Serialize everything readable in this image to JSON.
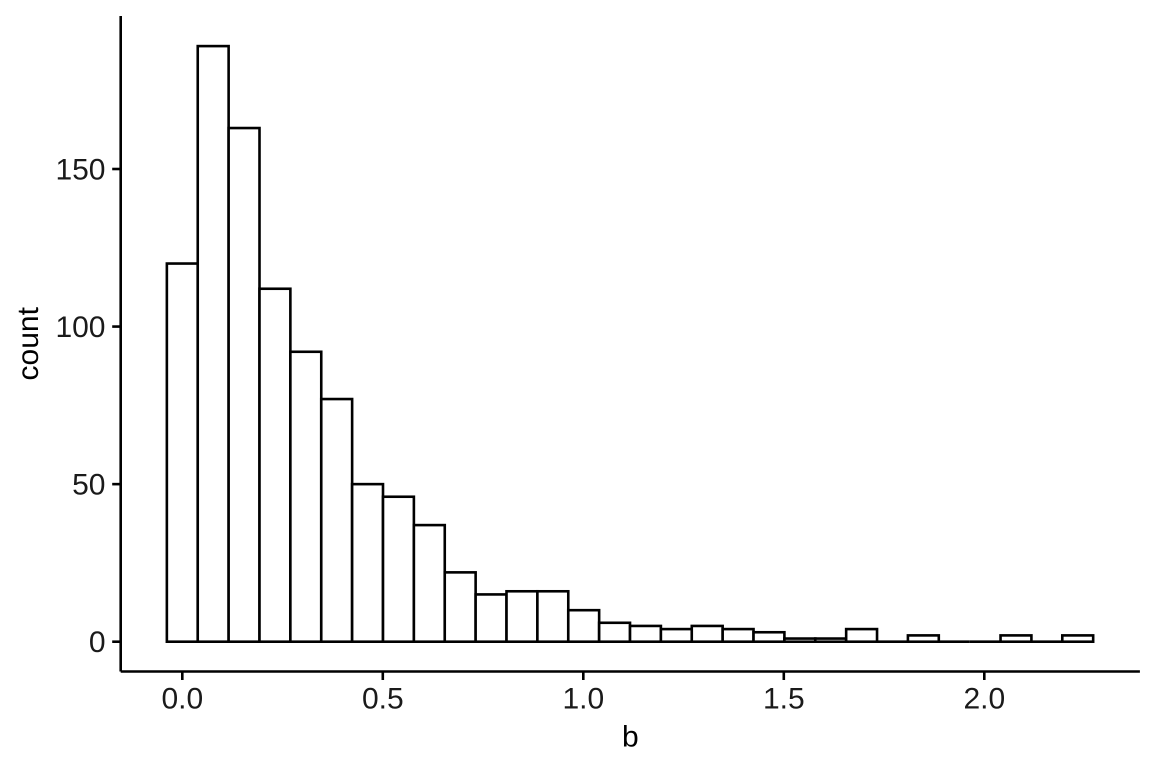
{
  "figure": {
    "background": "#FFFFFF"
  },
  "chart_data": {
    "type": "bar",
    "subtype": "histogram",
    "title": "",
    "xlabel": "b",
    "ylabel": "count",
    "legend": "none",
    "grid": "off",
    "bar_fill": "#FFFFFF",
    "bar_stroke": "#000000",
    "axis_color": "#000000",
    "tick_label_color": "#1A1A1A",
    "title_color": "#000000",
    "x_ticks": [
      0.0,
      0.5,
      1.0,
      1.5,
      2.0
    ],
    "x_tick_labels": [
      "0.0",
      "0.5",
      "1.0",
      "1.5",
      "2.0"
    ],
    "y_ticks": [
      0,
      50,
      100,
      150
    ],
    "y_tick_labels": [
      "0",
      "50",
      "100",
      "150"
    ],
    "xlim": [
      -0.154,
      2.394
    ],
    "ylim": [
      -9.45,
      198.45
    ],
    "bin_start": -0.0385,
    "bin_width": 0.077,
    "bin_centers": [
      0.0,
      0.077,
      0.154,
      0.231,
      0.308,
      0.385,
      0.462,
      0.539,
      0.616,
      0.693,
      0.77,
      0.847,
      0.924,
      1.001,
      1.078,
      1.155,
      1.232,
      1.309,
      1.386,
      1.463,
      1.54,
      1.617,
      1.694,
      1.771,
      1.848,
      1.925,
      2.002,
      2.079,
      2.156,
      2.233
    ],
    "counts": [
      120,
      189,
      163,
      112,
      92,
      77,
      50,
      46,
      37,
      22,
      15,
      16,
      16,
      10,
      6,
      5,
      4,
      5,
      4,
      3,
      1,
      1,
      4,
      0,
      2,
      0,
      0,
      2,
      0,
      2
    ]
  }
}
